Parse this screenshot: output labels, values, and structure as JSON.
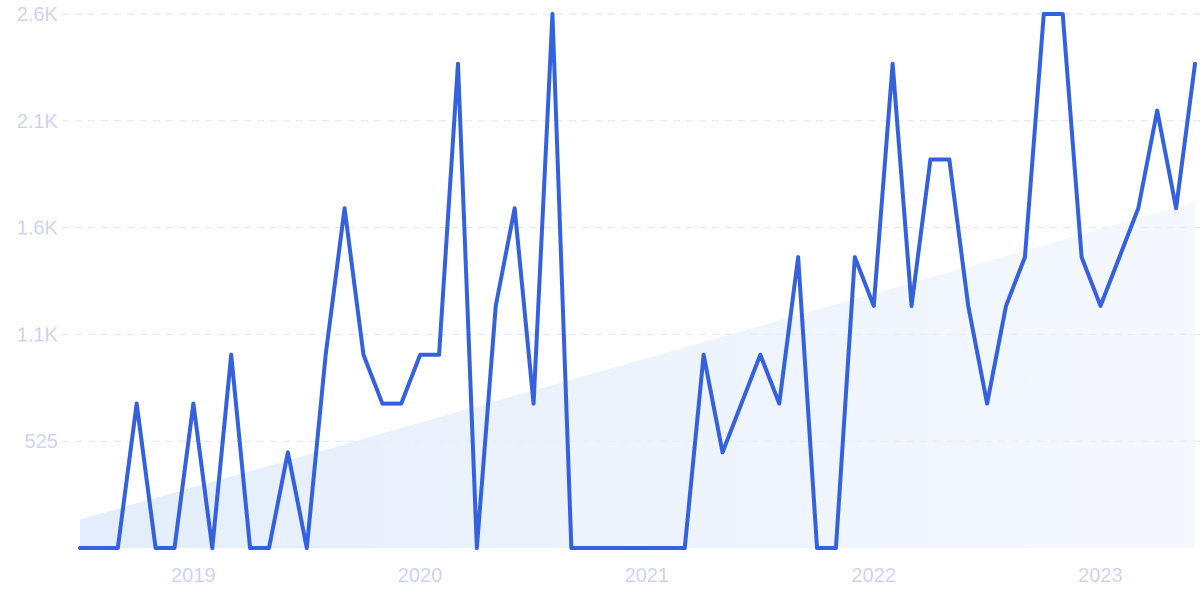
{
  "chart_data": {
    "type": "line",
    "title": "",
    "xlabel": "",
    "ylabel": "",
    "y_ticks": [
      {
        "value": 525,
        "label": "525"
      },
      {
        "value": 1050,
        "label": "1.1K"
      },
      {
        "value": 1575,
        "label": "1.6K"
      },
      {
        "value": 2100,
        "label": "2.1K"
      },
      {
        "value": 2625,
        "label": "2.6K"
      }
    ],
    "x_ticks": [
      {
        "value": "2019-01",
        "label": "2019"
      },
      {
        "value": "2020-01",
        "label": "2020"
      },
      {
        "value": "2021-01",
        "label": "2021"
      },
      {
        "value": "2022-01",
        "label": "2022"
      },
      {
        "value": "2023-01",
        "label": "2023"
      }
    ],
    "xlim": [
      "2018-07",
      "2023-06"
    ],
    "ylim": [
      0,
      2625
    ],
    "grid": "horizontal-dashed",
    "colors": {
      "line": "#3461e0",
      "trend_fill": "#e6effc",
      "grid": "#dfe5f5",
      "tick_text": "#cbd3f0"
    },
    "trend": {
      "start": [
        "2018-07",
        140
      ],
      "end": [
        "2023-06",
        1700
      ]
    },
    "series": [
      {
        "points": [
          [
            "2018-07",
            0
          ],
          [
            "2018-08",
            0
          ],
          [
            "2018-09",
            0
          ],
          [
            "2018-10",
            710
          ],
          [
            "2018-11",
            0
          ],
          [
            "2018-12",
            0
          ],
          [
            "2019-01",
            710
          ],
          [
            "2019-02",
            0
          ],
          [
            "2019-03",
            950
          ],
          [
            "2019-04",
            0
          ],
          [
            "2019-05",
            0
          ],
          [
            "2019-06",
            470
          ],
          [
            "2019-07",
            0
          ],
          [
            "2019-08",
            950
          ],
          [
            "2019-09",
            1670
          ],
          [
            "2019-10",
            950
          ],
          [
            "2019-11",
            710
          ],
          [
            "2019-12",
            710
          ],
          [
            "2020-01",
            950
          ],
          [
            "2020-02",
            950
          ],
          [
            "2020-03",
            2380
          ],
          [
            "2020-04",
            0
          ],
          [
            "2020-05",
            1190
          ],
          [
            "2020-06",
            1670
          ],
          [
            "2020-07",
            710
          ],
          [
            "2020-08",
            2625
          ],
          [
            "2020-09",
            0
          ],
          [
            "2020-10",
            0
          ],
          [
            "2020-11",
            0
          ],
          [
            "2020-12",
            0
          ],
          [
            "2021-01",
            0
          ],
          [
            "2021-02",
            0
          ],
          [
            "2021-03",
            0
          ],
          [
            "2021-04",
            950
          ],
          [
            "2021-05",
            470
          ],
          [
            "2021-06",
            710
          ],
          [
            "2021-07",
            950
          ],
          [
            "2021-08",
            710
          ],
          [
            "2021-09",
            1430
          ],
          [
            "2021-10",
            0
          ],
          [
            "2021-11",
            0
          ],
          [
            "2021-12",
            1430
          ],
          [
            "2022-01",
            1190
          ],
          [
            "2022-02",
            2380
          ],
          [
            "2022-03",
            1190
          ],
          [
            "2022-04",
            1910
          ],
          [
            "2022-05",
            1910
          ],
          [
            "2022-06",
            1190
          ],
          [
            "2022-07",
            710
          ],
          [
            "2022-08",
            1190
          ],
          [
            "2022-09",
            1430
          ],
          [
            "2022-10",
            2625
          ],
          [
            "2022-11",
            2625
          ],
          [
            "2022-12",
            1430
          ],
          [
            "2023-01",
            1190
          ],
          [
            "2023-02",
            1430
          ],
          [
            "2023-03",
            1670
          ],
          [
            "2023-04",
            2150
          ],
          [
            "2023-05",
            1670
          ],
          [
            "2023-06",
            2380
          ]
        ]
      }
    ]
  }
}
